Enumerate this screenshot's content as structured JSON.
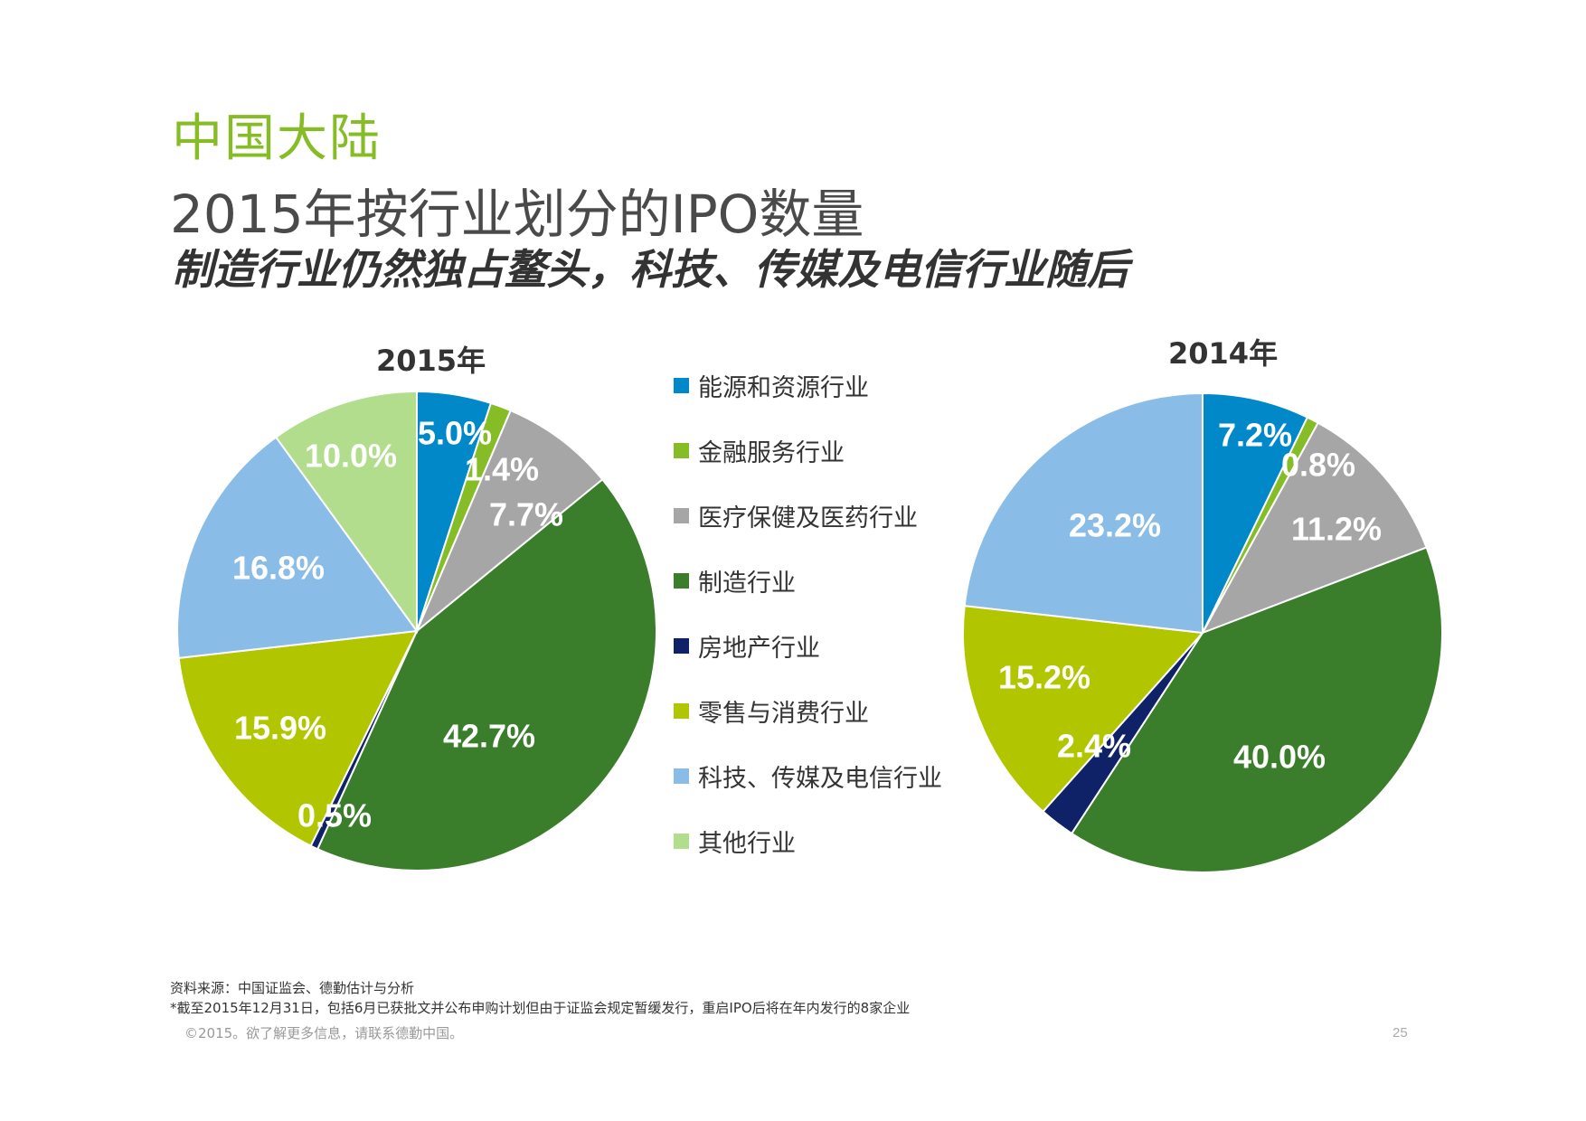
{
  "header": {
    "region": "中国大陆",
    "title": "2015年按行业划分的IPO数量",
    "subtitle": "制造行业仍然独占鳌头，科技、传媒及电信行业随后"
  },
  "legend": [
    {
      "label": "能源和资源行业",
      "color": "#0088c9"
    },
    {
      "label": "金融服务行业",
      "color": "#86bc25"
    },
    {
      "label": "医疗保健及医药行业",
      "color": "#a6a6a6"
    },
    {
      "label": "制造行业",
      "color": "#3a7d2b"
    },
    {
      "label": "房地产行业",
      "color": "#0f2167"
    },
    {
      "label": "零售与消费行业",
      "color": "#b2c600"
    },
    {
      "label": "科技、传媒及电信行业",
      "color": "#89bce6"
    },
    {
      "label": "其他行业",
      "color": "#b1dd8c"
    }
  ],
  "chart_data": [
    {
      "type": "pie",
      "title": "2015年",
      "categories": [
        "能源和资源行业",
        "金融服务行业",
        "医疗保健及医药行业",
        "制造行业",
        "房地产行业",
        "零售与消费行业",
        "科技、传媒及电信行业",
        "其他行业"
      ],
      "values": [
        5.0,
        1.4,
        7.7,
        42.7,
        0.5,
        15.9,
        16.8,
        10.0
      ],
      "labels": [
        "5.0%",
        "1.4%",
        "7.7%",
        "42.7%",
        "0.5%",
        "15.9%",
        "16.8%",
        "10.0%"
      ]
    },
    {
      "type": "pie",
      "title": "2014年",
      "categories": [
        "能源和资源行业",
        "金融服务行业",
        "医疗保健及医药行业",
        "制造行业",
        "房地产行业",
        "零售与消费行业",
        "科技、传媒及电信行业"
      ],
      "values": [
        7.2,
        0.8,
        11.2,
        40.0,
        2.4,
        15.2,
        23.2
      ],
      "labels": [
        "7.2%",
        "0.8%",
        "11.2%",
        "40.0%",
        "2.4%",
        "15.2%",
        "23.2%"
      ]
    }
  ],
  "footer": {
    "source": "资料来源：中国证监会、德勤估计与分析",
    "note": "*截至2015年12月31日，包括6月已获批文并公布申购计划但由于证监会规定暂缓发行，重启IPO后将在年内发行的8家企业",
    "copyright": "©2015。欲了解更多信息，请联系德勤中国。",
    "page": "25"
  }
}
